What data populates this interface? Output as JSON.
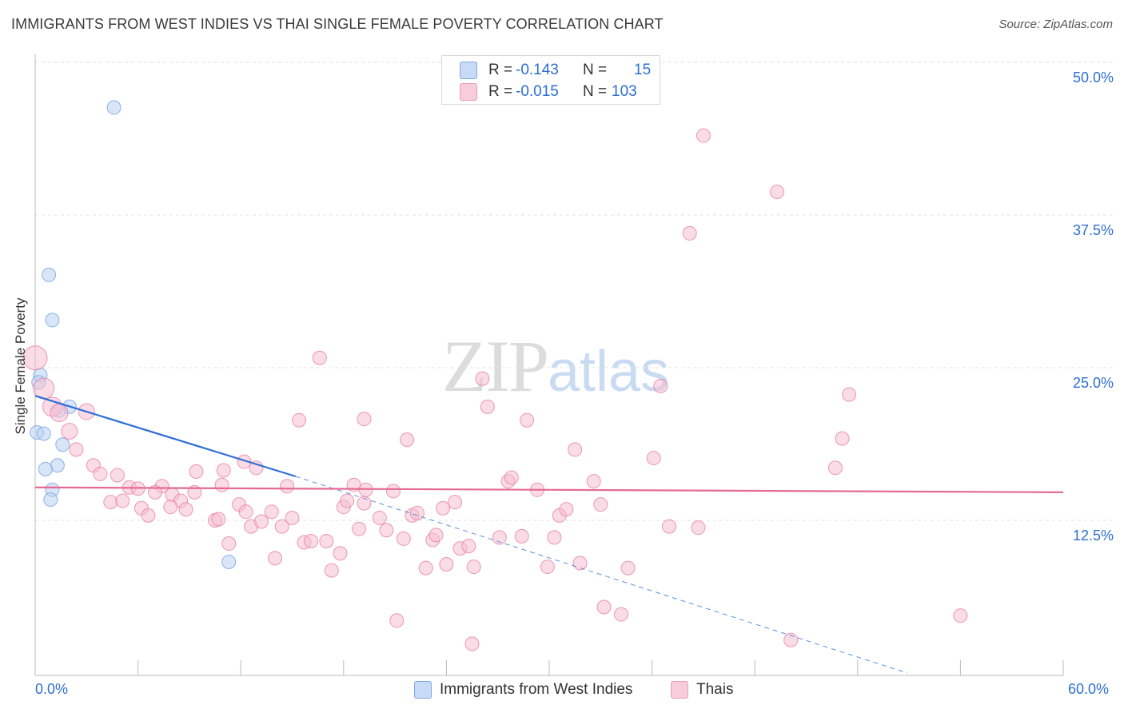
{
  "title": "IMMIGRANTS FROM WEST INDIES VS THAI SINGLE FEMALE POVERTY CORRELATION CHART",
  "source": "Source: ZipAtlas.com",
  "watermark": {
    "zip": "ZIP",
    "atlas": "atlas"
  },
  "legend": {
    "r_label": "R =",
    "n_label": "N =",
    "rows": [
      {
        "r": "-0.143",
        "n": "15",
        "color": "#a8c6ef"
      },
      {
        "r": "-0.015",
        "n": "103",
        "color": "#f4b6cb"
      }
    ]
  },
  "bottom_legend": [
    "Immigrants from West Indies",
    "Thais"
  ],
  "chart_data": {
    "type": "scatter",
    "title": "IMMIGRANTS FROM WEST INDIES VS THAI SINGLE FEMALE POVERTY CORRELATION CHART",
    "xlabel": "",
    "ylabel": "Single Female Poverty",
    "xlim": [
      0,
      60
    ],
    "ylim": [
      0,
      50
    ],
    "x_tick_labels": [
      "0.0%",
      "60.0%"
    ],
    "y_ticks": [
      12.5,
      25.0,
      37.5,
      50.0
    ],
    "y_tick_labels": [
      "12.5%",
      "25.0%",
      "37.5%",
      "50.0%"
    ],
    "grid": true,
    "legend_placement": "top-center",
    "series": [
      {
        "name": "Immigrants from West Indies",
        "color": "#6b9be0",
        "fill": "#b9d2f3",
        "r": -0.143,
        "n": 15,
        "points": [
          [
            4.6,
            46.3
          ],
          [
            0.8,
            32.6
          ],
          [
            1.0,
            28.9
          ],
          [
            0.3,
            24.4
          ],
          [
            0.2,
            23.8
          ],
          [
            2.0,
            21.8
          ],
          [
            1.4,
            21.5
          ],
          [
            0.1,
            19.7
          ],
          [
            0.5,
            19.6
          ],
          [
            1.6,
            18.7
          ],
          [
            1.3,
            17.0
          ],
          [
            0.6,
            16.7
          ],
          [
            1.0,
            15.0
          ],
          [
            0.9,
            14.2
          ],
          [
            11.3,
            9.1
          ]
        ],
        "trend": {
          "x0": 0,
          "y0": 22.7,
          "x1": 15.2,
          "y1": 16.1,
          "dashed_to_x": 50.9,
          "dashed_to_y": 0
        }
      },
      {
        "name": "Thais",
        "color": "#e8779d",
        "fill": "#f6bfd1",
        "r": -0.015,
        "n": 103,
        "points": [
          [
            0.0,
            25.8
          ],
          [
            0.5,
            23.3
          ],
          [
            1.0,
            21.8
          ],
          [
            1.4,
            21.3
          ],
          [
            3.0,
            21.4
          ],
          [
            2.0,
            19.8
          ],
          [
            2.4,
            18.3
          ],
          [
            3.4,
            17.0
          ],
          [
            3.8,
            16.3
          ],
          [
            4.8,
            16.2
          ],
          [
            5.5,
            15.2
          ],
          [
            6.0,
            15.1
          ],
          [
            7.4,
            15.3
          ],
          [
            7.0,
            14.8
          ],
          [
            8.0,
            14.6
          ],
          [
            8.5,
            14.1
          ],
          [
            4.4,
            14.0
          ],
          [
            5.1,
            14.1
          ],
          [
            6.2,
            13.5
          ],
          [
            6.6,
            12.9
          ],
          [
            7.9,
            13.6
          ],
          [
            8.8,
            13.4
          ],
          [
            9.3,
            14.8
          ],
          [
            9.4,
            16.5
          ],
          [
            10.5,
            12.5
          ],
          [
            10.7,
            12.6
          ],
          [
            10.9,
            15.4
          ],
          [
            11.3,
            10.6
          ],
          [
            11.9,
            13.8
          ],
          [
            12.3,
            13.2
          ],
          [
            12.6,
            12.0
          ],
          [
            12.9,
            16.8
          ],
          [
            12.2,
            17.3
          ],
          [
            13.2,
            12.4
          ],
          [
            13.8,
            13.2
          ],
          [
            14.0,
            9.4
          ],
          [
            14.4,
            12.0
          ],
          [
            15.0,
            12.7
          ],
          [
            14.7,
            15.3
          ],
          [
            15.7,
            10.7
          ],
          [
            16.1,
            10.8
          ],
          [
            17.0,
            10.8
          ],
          [
            16.6,
            25.8
          ],
          [
            15.4,
            20.7
          ],
          [
            17.3,
            8.4
          ],
          [
            17.8,
            9.8
          ],
          [
            18.0,
            13.6
          ],
          [
            18.2,
            14.1
          ],
          [
            18.6,
            15.4
          ],
          [
            19.3,
            15.0
          ],
          [
            18.9,
            11.8
          ],
          [
            19.2,
            20.8
          ],
          [
            20.1,
            12.7
          ],
          [
            20.5,
            11.7
          ],
          [
            20.9,
            14.9
          ],
          [
            21.7,
            19.1
          ],
          [
            21.5,
            11.0
          ],
          [
            22.0,
            12.9
          ],
          [
            22.3,
            13.1
          ],
          [
            22.8,
            8.6
          ],
          [
            23.2,
            10.9
          ],
          [
            23.4,
            11.3
          ],
          [
            24.0,
            8.9
          ],
          [
            24.5,
            14.0
          ],
          [
            24.8,
            10.2
          ],
          [
            25.3,
            10.4
          ],
          [
            25.6,
            8.7
          ],
          [
            21.1,
            4.3
          ],
          [
            25.5,
            2.4
          ],
          [
            26.1,
            24.1
          ],
          [
            26.4,
            21.8
          ],
          [
            27.1,
            11.1
          ],
          [
            27.6,
            15.7
          ],
          [
            27.8,
            16.0
          ],
          [
            28.4,
            11.2
          ],
          [
            28.7,
            20.7
          ],
          [
            29.3,
            15.0
          ],
          [
            29.9,
            8.7
          ],
          [
            30.3,
            11.1
          ],
          [
            30.6,
            12.9
          ],
          [
            31.0,
            13.4
          ],
          [
            31.5,
            18.3
          ],
          [
            31.8,
            9.0
          ],
          [
            32.6,
            15.7
          ],
          [
            33.0,
            13.8
          ],
          [
            33.2,
            5.4
          ],
          [
            34.2,
            4.8
          ],
          [
            34.6,
            8.6
          ],
          [
            36.1,
            17.6
          ],
          [
            36.5,
            23.5
          ],
          [
            37.0,
            12.0
          ],
          [
            38.2,
            36.0
          ],
          [
            38.7,
            11.9
          ],
          [
            39.0,
            44.0
          ],
          [
            43.3,
            39.4
          ],
          [
            44.1,
            2.7
          ],
          [
            46.7,
            16.8
          ],
          [
            47.1,
            19.2
          ],
          [
            47.5,
            22.8
          ],
          [
            54.0,
            4.7
          ],
          [
            19.2,
            13.9
          ],
          [
            23.8,
            13.5
          ],
          [
            11.0,
            16.6
          ]
        ],
        "trend": {
          "x0": 0,
          "y0": 15.2,
          "x1": 60,
          "y1": 14.8
        }
      }
    ]
  },
  "y_axis_title": "Single Female Poverty"
}
